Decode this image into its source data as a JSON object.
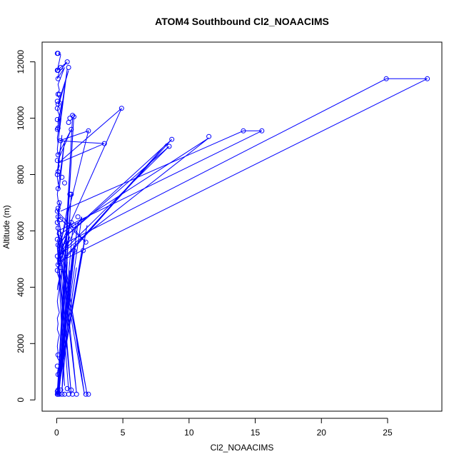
{
  "chart_data": {
    "type": "line",
    "title": "ATOM4 Southbound Cl2_NOAACIMS",
    "xlabel": "Cl2_NOAACIMS",
    "ylabel": "Altitude (m)",
    "xlim": [
      -1.1,
      29.1
    ],
    "ylim": [
      -400,
      12700
    ],
    "x_ticks": [
      0,
      5,
      10,
      15,
      20,
      25
    ],
    "x_tick_labels": [
      "0",
      "5",
      "10",
      "15",
      "20",
      "25"
    ],
    "y_ticks": [
      0,
      2000,
      4000,
      6000,
      8000,
      10000,
      12000
    ],
    "y_tick_labels": [
      "0",
      "2000",
      "4000",
      "6000",
      "8000",
      "10000",
      "12000"
    ],
    "grid": false,
    "legend": "none",
    "colors": {
      "series": "#0000ff",
      "axis": "#000000",
      "background": "#ffffff"
    },
    "series": [
      {
        "x": [
          0.1,
          0.3,
          0.05,
          0.8,
          0.2,
          0.05,
          0.6,
          0.1,
          0.2,
          0.05,
          0.3,
          0.1,
          0.9,
          0.05,
          0.2,
          0.1,
          0.1,
          0.4,
          0.05,
          0.2,
          0.8,
          0.05,
          0.1,
          0.3,
          0.05,
          0.1,
          1.1,
          0.1,
          0.2,
          0.05,
          0.4,
          0.05,
          0.1,
          0.2,
          0.6,
          0.05,
          0.1,
          0.3,
          0.05,
          2.2,
          0.1,
          0.05,
          0.2,
          0.1,
          0.05,
          0.3,
          0.05,
          0.1,
          0.2,
          0.05,
          1.0,
          0.1,
          0.05,
          0.2,
          0.1,
          0.05,
          0.4,
          0.1,
          0.05,
          0.1,
          0.2,
          0.05,
          0.1,
          0.05,
          0.2,
          0.1,
          0.05,
          0.1,
          0.05,
          0.3,
          0.1,
          0.05,
          0.2,
          0.1,
          0.05,
          0.1,
          0.05,
          0.2,
          0.1,
          0.05,
          0.1,
          0.05,
          0.2,
          0.1,
          0.05,
          0.1,
          0.05
        ],
        "y": [
          12300,
          12250,
          11700,
          12000,
          11650,
          11400,
          11800,
          11200,
          11000,
          10850,
          10600,
          10500,
          11700,
          10300,
          10100,
          9950,
          9800,
          10600,
          9600,
          9500,
          11750,
          9300,
          9100,
          10000,
          8900,
          8700,
          9600,
          8500,
          8300,
          8100,
          9400,
          7900,
          7700,
          7500,
          9200,
          7300,
          7100,
          6900,
          6700,
          5600,
          6500,
          6300,
          7000,
          6100,
          5900,
          5700,
          5500,
          5300,
          5100,
          4900,
          5800,
          4700,
          4500,
          4300,
          4100,
          3900,
          4600,
          3700,
          3500,
          3300,
          3100,
          2900,
          2700,
          2500,
          2300,
          2100,
          1900,
          1700,
          1500,
          1300,
          1100,
          900,
          700,
          500,
          400,
          350,
          300,
          280,
          260,
          240,
          230,
          220,
          210,
          200,
          200,
          190,
          180
        ]
      },
      {
        "x": [
          0.1,
          1.0,
          0.2,
          1.2,
          0.05,
          1.3,
          0.4,
          0.8,
          0.1,
          0.05
        ],
        "y": [
          200,
          4600,
          350,
          5200,
          200,
          5500,
          300,
          4900,
          230,
          200
        ]
      },
      {
        "x": [
          0.05,
          2.3,
          0.1,
          2.1,
          0.05,
          1.9,
          0.1,
          1.5,
          0.05,
          2.0,
          0.1,
          1.2
        ],
        "y": [
          200,
          6200,
          300,
          5600,
          200,
          5300,
          250,
          4700,
          200,
          5400,
          300,
          6000
        ]
      },
      {
        "x": [
          0.4,
          24.9,
          28.0,
          0.2
        ],
        "y": [
          5500,
          11400,
          11400,
          4900
        ]
      },
      {
        "x": [
          0.3,
          14.1,
          15.5,
          0.1
        ],
        "y": [
          6700,
          9550,
          9550,
          6000
        ]
      },
      {
        "x": [
          0.3,
          11.5,
          0.1,
          8.5,
          0.2,
          8.7,
          0.1,
          8.3,
          0.05
        ],
        "y": [
          5900,
          9300,
          5100,
          9000,
          5600,
          9250,
          4800,
          9100,
          4700
        ]
      },
      {
        "x": [
          0.2,
          4.9,
          0.1,
          3.6,
          0.2,
          2.4,
          0.1
        ],
        "y": [
          5400,
          10350,
          8400,
          9100,
          9200,
          9550,
          5200
        ]
      },
      {
        "x": [
          0.05,
          1.2,
          0.1,
          1.3,
          0.05,
          1.1,
          0.2,
          1.6,
          0.1,
          1.9,
          0.05,
          1.1,
          0.1,
          1.0
        ],
        "y": [
          200,
          10050,
          400,
          10100,
          300,
          7300,
          500,
          6300,
          600,
          6500,
          4800,
          6300,
          5000,
          7300
        ]
      },
      {
        "x": [
          0.1,
          2.3,
          0.05,
          2.1,
          0.2,
          1.5,
          0.1,
          1.1,
          0.05,
          0.9,
          0.1,
          0.6
        ],
        "y": [
          6000,
          200,
          5700,
          200,
          6300,
          250,
          5900,
          200,
          5400,
          350,
          5100,
          500
        ]
      }
    ],
    "points": [
      {
        "x": 0.05,
        "y": 12300
      },
      {
        "x": 0.1,
        "y": 12300
      },
      {
        "x": 0.8,
        "y": 12000
      },
      {
        "x": 0.05,
        "y": 11700
      },
      {
        "x": 0.1,
        "y": 11700
      },
      {
        "x": 0.3,
        "y": 11800
      },
      {
        "x": 0.9,
        "y": 11800
      },
      {
        "x": 24.9,
        "y": 11400
      },
      {
        "x": 28.0,
        "y": 11400
      },
      {
        "x": 0.1,
        "y": 11400
      },
      {
        "x": 0.1,
        "y": 10850
      },
      {
        "x": 0.2,
        "y": 10850
      },
      {
        "x": 0.05,
        "y": 10600
      },
      {
        "x": 0.1,
        "y": 10500
      },
      {
        "x": 0.05,
        "y": 10350
      },
      {
        "x": 4.9,
        "y": 10350
      },
      {
        "x": 1.2,
        "y": 10100
      },
      {
        "x": 1.3,
        "y": 10050
      },
      {
        "x": 1.0,
        "y": 10000
      },
      {
        "x": 0.05,
        "y": 9950
      },
      {
        "x": 0.9,
        "y": 9850
      },
      {
        "x": 0.1,
        "y": 9650
      },
      {
        "x": 0.05,
        "y": 9600
      },
      {
        "x": 1.1,
        "y": 9600
      },
      {
        "x": 2.4,
        "y": 9550
      },
      {
        "x": 14.1,
        "y": 9550
      },
      {
        "x": 15.5,
        "y": 9550
      },
      {
        "x": 11.5,
        "y": 9350
      },
      {
        "x": 8.7,
        "y": 9250
      },
      {
        "x": 0.3,
        "y": 9200
      },
      {
        "x": 3.6,
        "y": 9100
      },
      {
        "x": 8.5,
        "y": 9000
      },
      {
        "x": 0.1,
        "y": 8700
      },
      {
        "x": 0.05,
        "y": 8500
      },
      {
        "x": 0.1,
        "y": 8100
      },
      {
        "x": 0.05,
        "y": 8000
      },
      {
        "x": 0.4,
        "y": 7900
      },
      {
        "x": 0.6,
        "y": 7700
      },
      {
        "x": 0.1,
        "y": 7500
      },
      {
        "x": 1.0,
        "y": 7300
      },
      {
        "x": 1.1,
        "y": 7300
      },
      {
        "x": 0.2,
        "y": 7000
      },
      {
        "x": 0.1,
        "y": 6800
      },
      {
        "x": 0.05,
        "y": 6700
      },
      {
        "x": 0.1,
        "y": 6500
      },
      {
        "x": 1.6,
        "y": 6500
      },
      {
        "x": 0.3,
        "y": 6400
      },
      {
        "x": 0.05,
        "y": 6300
      },
      {
        "x": 1.1,
        "y": 6300
      },
      {
        "x": 1.3,
        "y": 6200
      },
      {
        "x": 0.1,
        "y": 6100
      },
      {
        "x": 0.2,
        "y": 5900
      },
      {
        "x": 2.2,
        "y": 5600
      },
      {
        "x": 0.05,
        "y": 5700
      },
      {
        "x": 0.1,
        "y": 5500
      },
      {
        "x": 0.3,
        "y": 5400
      },
      {
        "x": 2.0,
        "y": 5300
      },
      {
        "x": 1.3,
        "y": 5300
      },
      {
        "x": 0.05,
        "y": 5100
      },
      {
        "x": 0.2,
        "y": 5000
      },
      {
        "x": 0.1,
        "y": 4800
      },
      {
        "x": 0.3,
        "y": 4700
      },
      {
        "x": 0.05,
        "y": 4600
      },
      {
        "x": 0.1,
        "y": 1600
      },
      {
        "x": 0.05,
        "y": 1200
      },
      {
        "x": 0.1,
        "y": 900
      },
      {
        "x": 0.1,
        "y": 350
      },
      {
        "x": 0.3,
        "y": 350
      },
      {
        "x": 0.8,
        "y": 400
      },
      {
        "x": 1.1,
        "y": 350
      },
      {
        "x": 0.05,
        "y": 300
      },
      {
        "x": 0.1,
        "y": 250
      },
      {
        "x": 0.05,
        "y": 200
      },
      {
        "x": 0.1,
        "y": 200
      },
      {
        "x": 0.2,
        "y": 200
      },
      {
        "x": 0.4,
        "y": 200
      },
      {
        "x": 0.6,
        "y": 200
      },
      {
        "x": 0.9,
        "y": 200
      },
      {
        "x": 1.2,
        "y": 200
      },
      {
        "x": 1.5,
        "y": 200
      },
      {
        "x": 2.2,
        "y": 200
      },
      {
        "x": 2.4,
        "y": 200
      }
    ]
  }
}
